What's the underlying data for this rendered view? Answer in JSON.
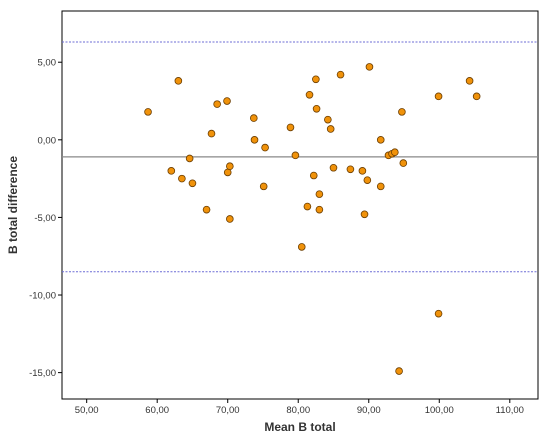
{
  "chart_data": {
    "type": "scatter",
    "xlabel": "Mean B total",
    "ylabel": "B total difference",
    "xlim": [
      46.5,
      114
    ],
    "ylim": [
      -16.7,
      8.3
    ],
    "x_ticks": [
      50,
      60,
      70,
      80,
      90,
      100,
      110
    ],
    "x_tick_labels": [
      "50,00",
      "60,00",
      "70,00",
      "80,00",
      "90,00",
      "100,00",
      "110,00"
    ],
    "y_ticks": [
      5,
      0,
      -5,
      -10,
      -15
    ],
    "y_tick_labels": [
      "5,00",
      "0,00",
      "-5,00",
      "-10,00",
      "-15,00"
    ],
    "grid": false,
    "reference_lines": {
      "mean": -1.1,
      "upper_limit": 6.3,
      "lower_limit": -8.5
    },
    "colors": {
      "marker_fill": "#f0920a",
      "marker_stroke": "#6b3d00",
      "mean_line": "#888888",
      "limit_line": "#6d6dd6",
      "frame": "#000000"
    },
    "series": [
      {
        "points": [
          [
            58.7,
            1.8
          ],
          [
            62.0,
            -2.0
          ],
          [
            63.0,
            3.8
          ],
          [
            63.5,
            -2.5
          ],
          [
            64.6,
            -1.2
          ],
          [
            65.0,
            -2.8
          ],
          [
            67.0,
            -4.5
          ],
          [
            67.7,
            0.4
          ],
          [
            68.5,
            2.3
          ],
          [
            69.9,
            2.5
          ],
          [
            70.0,
            -2.1
          ],
          [
            70.3,
            -5.1
          ],
          [
            70.3,
            -1.7
          ],
          [
            73.7,
            1.4
          ],
          [
            73.8,
            0.0
          ],
          [
            75.1,
            -3.0
          ],
          [
            75.3,
            -0.5
          ],
          [
            78.9,
            0.8
          ],
          [
            79.6,
            -1.0
          ],
          [
            80.5,
            -6.9
          ],
          [
            81.3,
            -4.3
          ],
          [
            81.6,
            2.9
          ],
          [
            82.2,
            -2.3
          ],
          [
            82.5,
            3.9
          ],
          [
            82.6,
            2.0
          ],
          [
            83.0,
            -3.5
          ],
          [
            83.0,
            -4.5
          ],
          [
            84.2,
            1.3
          ],
          [
            84.6,
            0.7
          ],
          [
            85.0,
            -1.8
          ],
          [
            86.0,
            4.2
          ],
          [
            87.4,
            -1.9
          ],
          [
            89.1,
            -2.0
          ],
          [
            89.4,
            -4.8
          ],
          [
            89.8,
            -2.6
          ],
          [
            90.1,
            4.7
          ],
          [
            91.7,
            0.0
          ],
          [
            91.7,
            -3.0
          ],
          [
            92.8,
            -1.0
          ],
          [
            93.3,
            -0.9
          ],
          [
            93.7,
            -0.8
          ],
          [
            94.3,
            -14.9
          ],
          [
            94.7,
            1.8
          ],
          [
            94.9,
            -1.5
          ],
          [
            99.9,
            2.8
          ],
          [
            99.9,
            -11.2
          ],
          [
            104.3,
            3.8
          ],
          [
            105.3,
            2.8
          ]
        ]
      }
    ]
  }
}
